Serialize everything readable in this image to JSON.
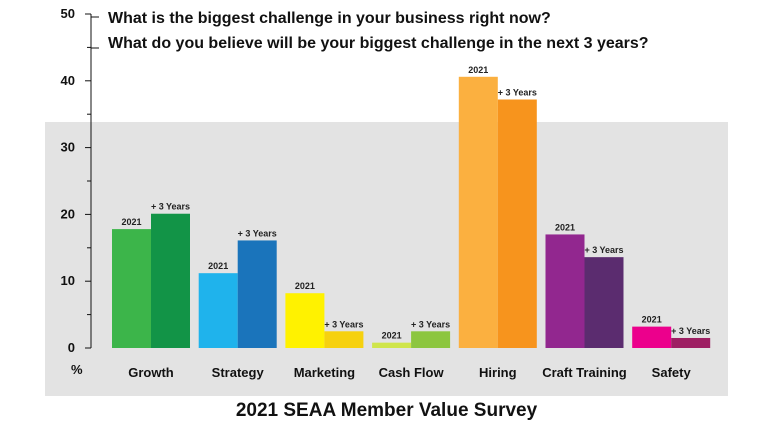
{
  "chart_data": {
    "type": "bar",
    "title": "2021 SEAA Member Value Survey",
    "questions": [
      "What is the biggest challenge in your business right now?",
      "What do you believe will be your biggest challenge in the next 3 years?"
    ],
    "ylabel": "%",
    "ylim": [
      0,
      50
    ],
    "yticks": [
      0,
      10,
      20,
      30,
      40,
      50
    ],
    "series_labels": [
      "2021",
      "+ 3 Years"
    ],
    "categories": [
      "Growth",
      "Strategy",
      "Marketing",
      "Cash Flow",
      "Hiring",
      "Craft Training",
      "Safety"
    ],
    "series": [
      {
        "name": "2021",
        "values": [
          17.8,
          11.2,
          8.2,
          0.8,
          40.6,
          17.0,
          3.2
        ]
      },
      {
        "name": "+ 3 Years",
        "values": [
          20.1,
          16.1,
          2.5,
          2.5,
          37.2,
          13.6,
          1.5
        ]
      }
    ],
    "colors": [
      [
        "#3cb54a",
        "#129447"
      ],
      [
        "#1fb3ec",
        "#1a74bb"
      ],
      [
        "#fff200",
        "#f6d10f"
      ],
      [
        "#cfe54a",
        "#8cc63f"
      ],
      [
        "#fbb040",
        "#f7941d"
      ],
      [
        "#92278f",
        "#5b2c6f"
      ],
      [
        "#ec008c",
        "#9e1f63"
      ]
    ],
    "background_band_color": "#e3e3e3"
  }
}
